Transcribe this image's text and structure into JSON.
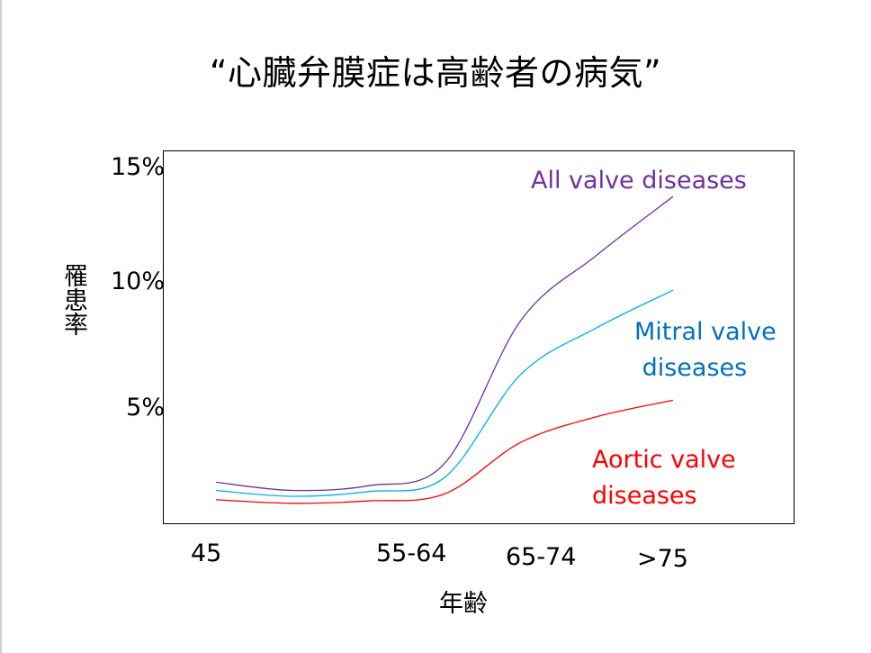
{
  "title": "“心臓弁膜症は高齢者の病気”",
  "chart_data": {
    "type": "line",
    "ylabel": "罹患率",
    "xlabel": "年齢",
    "x_ticks": [
      "45",
      "55-64",
      "65-74",
      ">75"
    ],
    "y_ticks": [
      "15%",
      "10%",
      "5%"
    ],
    "y_tick_values": [
      15,
      10,
      5
    ],
    "ylim": [
      0,
      15
    ],
    "grid": false,
    "legend": "inline labels at line ends",
    "series": [
      {
        "name": "All valve diseases",
        "color": "#7030a0",
        "points": [
          [
            45,
            1.6
          ],
          [
            50,
            1.25
          ],
          [
            55,
            1.45
          ],
          [
            60,
            2.4
          ],
          [
            65,
            8.5
          ],
          [
            70,
            11.3
          ],
          [
            75,
            13.8
          ]
        ]
      },
      {
        "name": "Mitral valve\n diseases",
        "color": "#00b0f0",
        "label_color": "#0070c0",
        "points": [
          [
            45,
            1.25
          ],
          [
            50,
            1.0
          ],
          [
            55,
            1.2
          ],
          [
            60,
            1.8
          ],
          [
            65,
            6.2
          ],
          [
            70,
            8.2
          ],
          [
            75,
            9.8
          ]
        ]
      },
      {
        "name": "Aortic valve\ndiseases",
        "color": "#ff0000",
        "points": [
          [
            45,
            0.85
          ],
          [
            50,
            0.7
          ],
          [
            55,
            0.8
          ],
          [
            60,
            1.1
          ],
          [
            65,
            3.3
          ],
          [
            70,
            4.4
          ],
          [
            75,
            5.1
          ]
        ]
      }
    ]
  }
}
